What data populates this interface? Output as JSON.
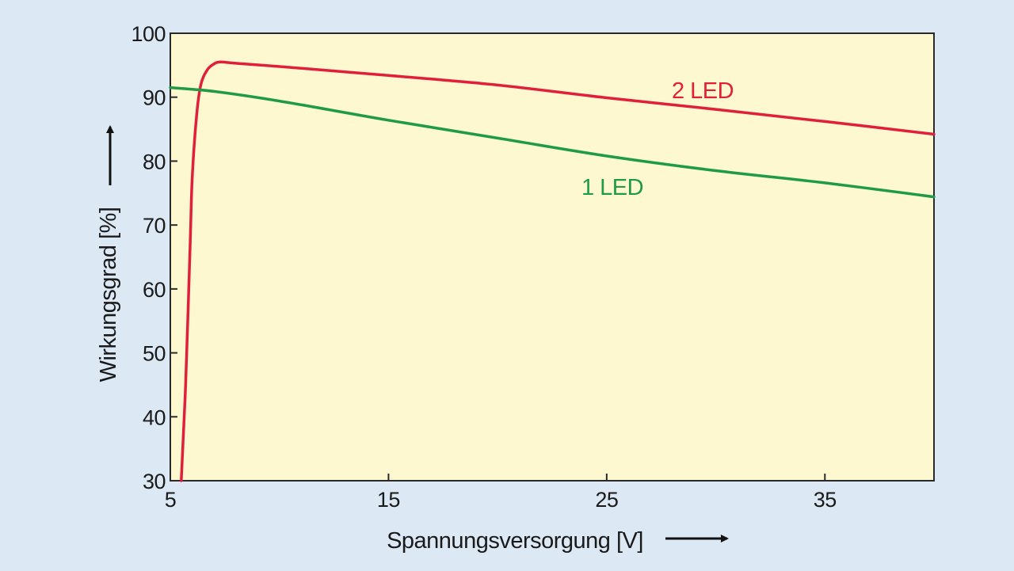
{
  "chart_data": {
    "type": "line",
    "title": "",
    "xlabel": "Spannungsversorgung [V]",
    "ylabel": "Wirkungsgrad [%]",
    "xlim": [
      5,
      40
    ],
    "ylim": [
      30,
      100
    ],
    "xticks": [
      "5",
      "15",
      "25",
      "35"
    ],
    "yticks": [
      "30",
      "40",
      "50",
      "60",
      "70",
      "80",
      "90",
      "100"
    ],
    "grid": false,
    "legend": "inline labels",
    "plot_background": "#fdf8d0",
    "series": [
      {
        "name": "2 LED",
        "color": "#e0203a",
        "x": [
          5.5,
          5.7,
          5.9,
          6.0,
          6.2,
          6.4,
          6.7,
          7.0,
          7.3,
          8,
          10,
          15,
          20,
          25,
          30,
          35,
          40
        ],
        "y": [
          30,
          45,
          66,
          77,
          87,
          92,
          94.3,
          95.2,
          95.5,
          95.3,
          94.8,
          93.4,
          91.9,
          89.9,
          88.1,
          86.2,
          84.2
        ]
      },
      {
        "name": "1 LED",
        "color": "#1f9a47",
        "x": [
          5,
          7,
          10,
          15,
          20,
          25,
          30,
          35,
          40
        ],
        "y": [
          91.5,
          90.9,
          89.4,
          86.4,
          83.6,
          80.8,
          78.5,
          76.6,
          74.4
        ]
      }
    ]
  }
}
